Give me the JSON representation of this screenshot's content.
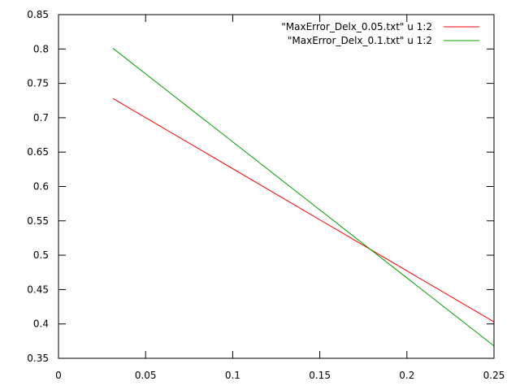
{
  "chart_data": {
    "type": "line",
    "title": "",
    "xlabel": "",
    "ylabel": "",
    "xlim": [
      0,
      0.25
    ],
    "ylim": [
      0.35,
      0.85
    ],
    "x_ticks": [
      0,
      0.05,
      0.1,
      0.15,
      0.2,
      0.25
    ],
    "x_tick_labels": [
      "0",
      "0.05",
      "0.1",
      "0.15",
      "0.2",
      "0.25"
    ],
    "y_ticks": [
      0.35,
      0.4,
      0.45,
      0.5,
      0.55,
      0.6,
      0.65,
      0.7,
      0.75,
      0.8,
      0.85
    ],
    "y_tick_labels": [
      "0.35",
      "0.4",
      "0.45",
      "0.5",
      "0.55",
      "0.6",
      "0.65",
      "0.7",
      "0.75",
      "0.8",
      "0.85"
    ],
    "grid": false,
    "legend_position": "top-right",
    "series": [
      {
        "name": "\"MaxError_Delx_0.05.txt\" u 1:2",
        "color": "#ff0000",
        "points": [
          [
            0.03125,
            0.728
          ],
          [
            0.25,
            0.403
          ]
        ]
      },
      {
        "name": "\"MaxError_Delx_0.1.txt\" u 1:2",
        "color": "#00a000",
        "points": [
          [
            0.03125,
            0.801
          ],
          [
            0.25,
            0.368
          ]
        ]
      }
    ]
  }
}
